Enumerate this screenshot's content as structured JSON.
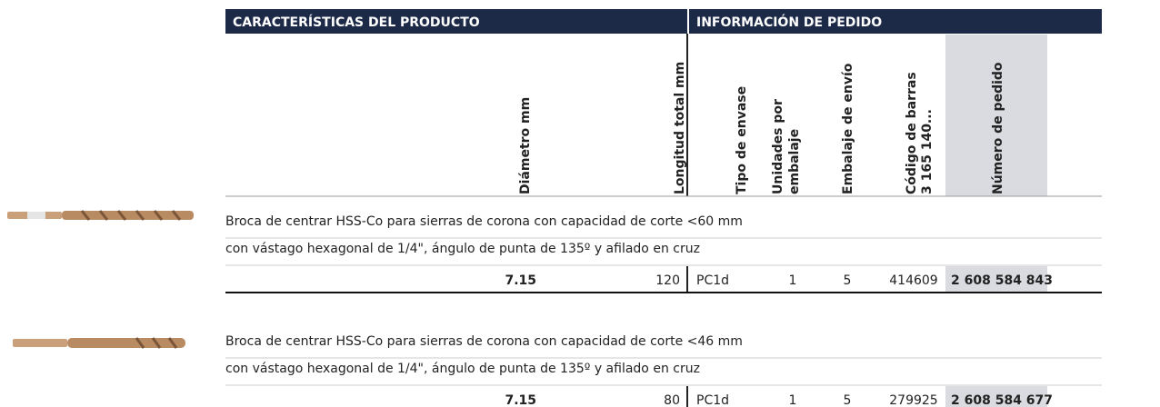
{
  "header": {
    "left": "CARACTERÍSTICAS DEL PRODUCTO",
    "right": "INFORMACIÓN DE PEDIDO"
  },
  "columns": [
    {
      "lines": [
        "Diámetro mm"
      ]
    },
    {
      "lines": [
        "Longitud total mm"
      ]
    },
    {
      "lines": [
        "Tipo de envase"
      ]
    },
    {
      "lines": [
        "Unidades por",
        "embalaje"
      ]
    },
    {
      "lines": [
        "Embalaje de envío"
      ]
    },
    {
      "lines": [
        "Código de barras",
        "3 165 140..."
      ]
    },
    {
      "lines": [
        "Número de pedido"
      ]
    }
  ],
  "products": [
    {
      "description": [
        "Broca de centrar HSS-Co para sierras de corona con capacidad de corte <60 mm",
        "con vástago hexagonal de 1/4\", ángulo de punta de 135º y afilado en cruz"
      ],
      "row": [
        "7.15",
        "120",
        "PC1d",
        "1",
        "5",
        "414609",
        "2 608 584 843"
      ]
    },
    {
      "description": [
        "Broca de centrar HSS-Co para sierras de corona con capacidad de corte <46 mm",
        "con vástago hexagonal de 1/4\", ángulo de punta de 135º y afilado en cruz"
      ],
      "row": [
        "7.15",
        "80",
        "PC1d",
        "1",
        "5",
        "279925",
        "2 608 584 677"
      ]
    }
  ]
}
